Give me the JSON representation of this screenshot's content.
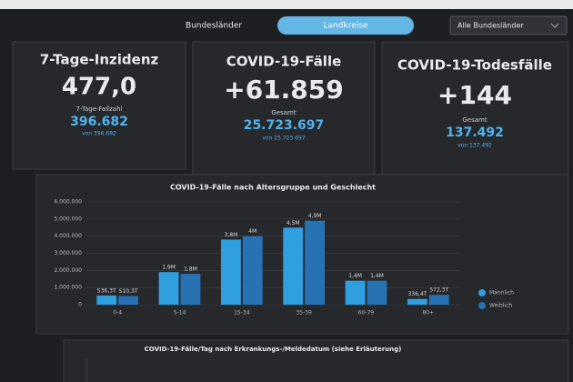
{
  "header": {
    "tabs": [
      "Bundesländer",
      "Landkreise"
    ],
    "active_tab": 1,
    "dropdown": "Alle Bundesländer"
  },
  "cards": [
    {
      "title": "7-Tage-Inzidenz",
      "value": "477,0",
      "sub_label": "7-Tage-Fallzahl",
      "sub_value": "396.682",
      "sub_note": "von 396.682"
    },
    {
      "title": "COVID-19-Fälle",
      "value": "+61.859",
      "sub_label": "Gesamt",
      "sub_value": "25.723.697",
      "sub_note": "von 25.723.697"
    },
    {
      "title": "COVID-19-Todesfälle",
      "value": "+144",
      "sub_label": "Gesamt",
      "sub_value": "137.492",
      "sub_note": "von 137.492"
    }
  ],
  "chart_data": {
    "type": "bar",
    "title": "COVID-19-Fälle nach Altersgruppe und Geschlecht",
    "categories": [
      "0-4",
      "5-14",
      "15-34",
      "35-59",
      "60-79",
      "80+"
    ],
    "series": [
      {
        "name": "Männlich",
        "color": "#2f9fe0",
        "values": [
          536300,
          1900000,
          3800000,
          4500000,
          1400000,
          336400
        ],
        "value_labels": [
          "536,3T",
          "1,9M",
          "3,8M",
          "4,5M",
          "1,4M",
          "336,4T"
        ]
      },
      {
        "name": "Weiblich",
        "color": "#2672b3",
        "values": [
          510300,
          1800000,
          4000000,
          4900000,
          1400000,
          572300
        ],
        "value_labels": [
          "510,3T",
          "1,8M",
          "4M",
          "4,9M",
          "1,4M",
          "572,3T"
        ]
      }
    ],
    "ylim": [
      0,
      6000000
    ],
    "yticks": [
      0,
      {
        "value": 1000000,
        "label": "1.000.000"
      },
      {
        "value": 2000000,
        "label": "2.000.000"
      },
      {
        "value": 3000000,
        "label": "3.000.000"
      },
      {
        "value": 4000000,
        "label": "4.000.000"
      },
      {
        "value": 5000000,
        "label": "5.000.000"
      },
      {
        "value": 6000000,
        "label": "6.000.000"
      }
    ],
    "grid": true
  },
  "bottom": {
    "title": "COVID-19-Fälle/Tag nach Erkrankungs-/Meldedatum (siehe Erläuterung)"
  }
}
